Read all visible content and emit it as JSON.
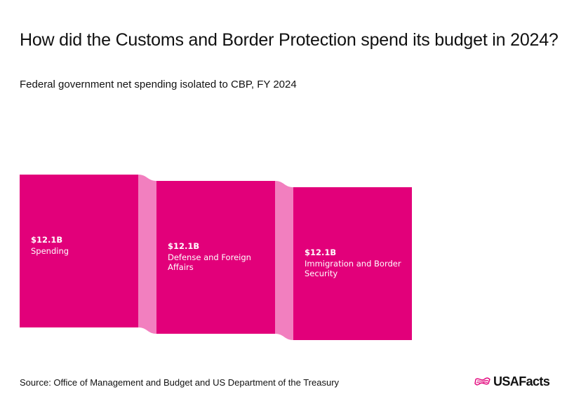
{
  "title": "How did the Customs and Border Protection spend its budget in 2024?",
  "subtitle": "Federal government net spending isolated to CBP, FY 2024",
  "source": "Source: Office of Management and Budget and US Department of the Treasury",
  "logo": {
    "text": "USAFacts",
    "icon": "flag-icon"
  },
  "colors": {
    "node": "#e2007a",
    "link": "#f27fbf",
    "text_on_node": "#ffffff"
  },
  "chart_data": {
    "type": "sankey",
    "unit": "$B",
    "nodes": [
      {
        "id": "spending",
        "value_label": "$12.1B",
        "label": "Spending",
        "value": 12.1
      },
      {
        "id": "defense",
        "value_label": "$12.1B",
        "label": "Defense and Foreign Affairs",
        "value": 12.1
      },
      {
        "id": "immigration",
        "value_label": "$12.1B",
        "label": "Immigration and Border Security",
        "value": 12.1
      }
    ],
    "links": [
      {
        "source": "spending",
        "target": "defense",
        "value": 12.1
      },
      {
        "source": "defense",
        "target": "immigration",
        "value": 12.1
      }
    ]
  }
}
